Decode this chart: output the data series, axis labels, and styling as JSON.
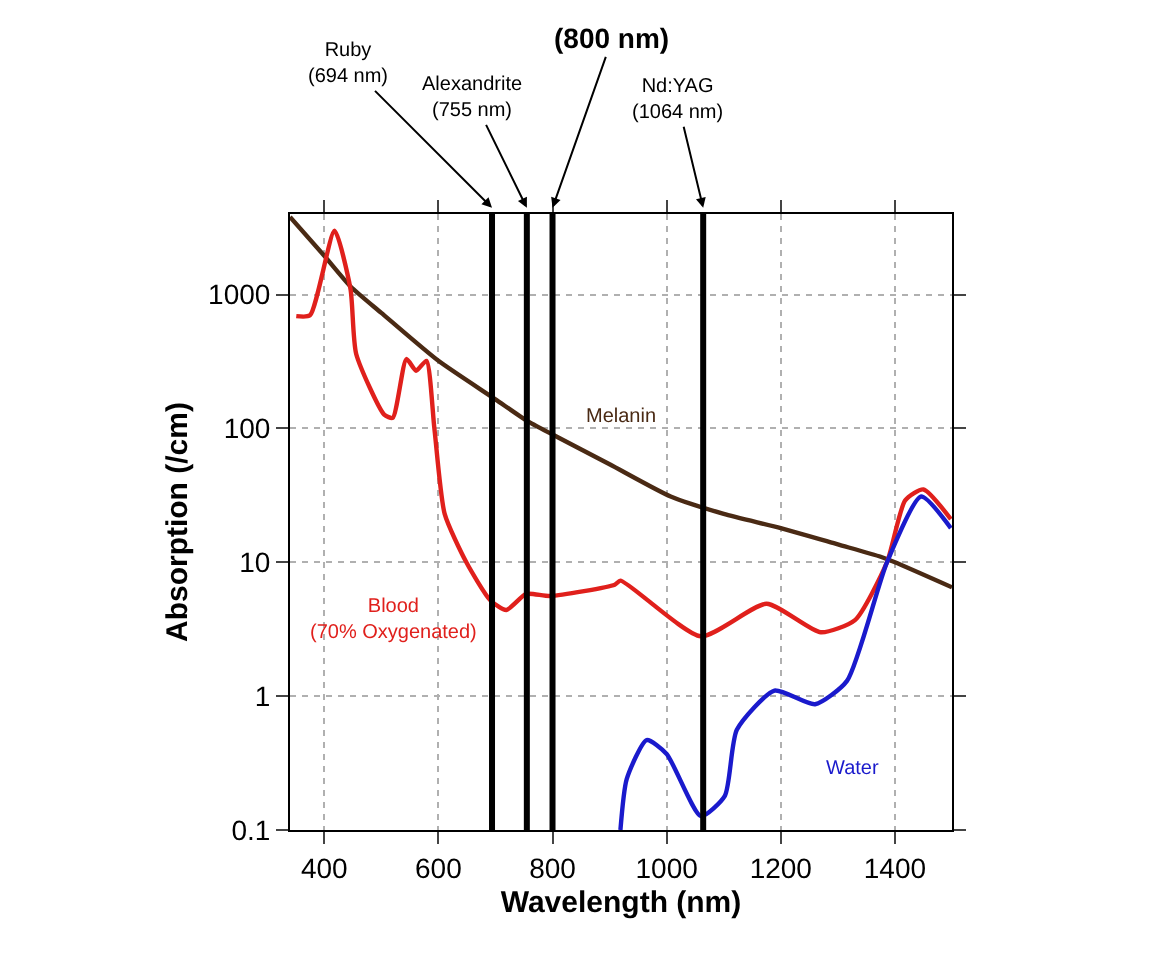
{
  "chart_data": {
    "type": "line",
    "xlabel": "Wavelength (nm)",
    "ylabel": "Absorption (/cm)",
    "xlim": [
      340,
      1500
    ],
    "ylim": [
      0.1,
      4000
    ],
    "log": "y",
    "xticks": [
      400,
      600,
      800,
      1000,
      1200,
      1400
    ],
    "yticks": [
      0.1,
      1,
      10,
      100,
      1000
    ],
    "grid": true,
    "legend": false,
    "marker": "none",
    "line_style": "solid",
    "series": [
      {
        "name": "Melanin",
        "color": "#4a2a14",
        "x": [
          340,
          400,
          446,
          500,
          600,
          700,
          754,
          800,
          900,
          1007,
          1100,
          1200,
          1300,
          1375,
          1400,
          1500
        ],
        "values": [
          3800,
          1950,
          1150,
          730,
          320,
          165,
          115,
          90,
          54,
          31,
          23,
          18,
          13.6,
          11,
          10,
          6.5
        ]
      },
      {
        "name": "Blood\n(70% Oxygenated)",
        "color": "#e0201c",
        "x": [
          351,
          375,
          418,
          446,
          456,
          505,
          520,
          544,
          561,
          579,
          593,
          611,
          649,
          691,
          719,
          754,
          796,
          909,
          919,
          1060,
          1175,
          1270,
          1330,
          1386,
          1418,
          1450,
          1498
        ],
        "values": [
          690,
          700,
          3000,
          1100,
          360,
          127,
          120,
          330,
          270,
          320,
          100,
          23,
          10,
          5.2,
          4.4,
          5.8,
          5.6,
          6.8,
          7.3,
          2.8,
          4.9,
          3,
          3.7,
          10,
          29,
          35,
          21
        ]
      },
      {
        "name": "Water",
        "color": "#1a1acc",
        "x": [
          919,
          930,
          965,
          1000,
          1060,
          1102,
          1123,
          1189,
          1260,
          1316,
          1386,
          1446,
          1498
        ],
        "values": [
          0.1,
          0.24,
          0.47,
          0.37,
          0.127,
          0.18,
          0.56,
          1.1,
          0.87,
          1.3,
          10,
          31,
          18
        ]
      }
    ],
    "ref_lines": [
      {
        "axis": "x",
        "value": 694,
        "label": "Ruby\n(694 nm)",
        "color": "#000000"
      },
      {
        "axis": "x",
        "value": 755,
        "label": "Alexandrite\n(755 nm)",
        "color": "#000000"
      },
      {
        "axis": "x",
        "value": 800,
        "label": "(800 nm)",
        "color": "#000000"
      },
      {
        "axis": "x",
        "value": 1064,
        "label": "Nd:YAG\n(1064 nm)",
        "color": "#000000"
      }
    ]
  }
}
